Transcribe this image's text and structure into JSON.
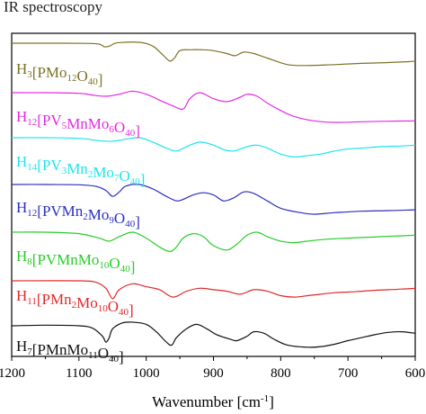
{
  "chart_data": {
    "type": "line",
    "title": "IR spectroscopy",
    "xlabel": "Wavenumber [cm",
    "xlabel_sup": "-1",
    "xlabel_tail": "]",
    "ylabel": "",
    "xlim": [
      1200,
      600
    ],
    "x_reversed": true,
    "xticks": [
      1200,
      1100,
      1000,
      900,
      800,
      700,
      600
    ],
    "grid": false,
    "series": [
      {
        "name_parts": [
          [
            "H",
            "",
            "3"
          ],
          [
            "[PMo",
            "",
            "12"
          ],
          [
            "O",
            "",
            "40"
          ],
          [
            "]",
            "",
            ""
          ]
        ],
        "color": "#7a7325",
        "x": [
          1200,
          1160,
          1090,
          1070,
          1062,
          1055,
          1048,
          1040,
          1010,
          990,
          975,
          965,
          958,
          950,
          935,
          915,
          900,
          880,
          868,
          855,
          840,
          820,
          790,
          760,
          720,
          680,
          640,
          610,
          600
        ],
        "y": [
          0.0,
          0.0,
          0.005,
          0.03,
          0.12,
          0.1,
          0.02,
          -0.02,
          -0.03,
          0.1,
          0.4,
          0.6,
          0.5,
          0.25,
          0.22,
          0.22,
          0.25,
          0.35,
          0.42,
          0.3,
          0.35,
          0.5,
          0.72,
          0.75,
          0.72,
          0.68,
          0.65,
          0.62,
          0.6
        ]
      },
      {
        "name_parts": [
          [
            "H",
            "",
            "12"
          ],
          [
            "[PV",
            "",
            "5"
          ],
          [
            "MnMo",
            "",
            "6"
          ],
          [
            "O",
            "",
            "40"
          ],
          [
            "]",
            "",
            ""
          ]
        ],
        "color": "#e22be1",
        "x": [
          1200,
          1150,
          1100,
          1080,
          1060,
          1040,
          1020,
          1000,
          980,
          960,
          945,
          935,
          920,
          900,
          880,
          860,
          850,
          835,
          820,
          800,
          780,
          750,
          720,
          680,
          640,
          600
        ],
        "y": [
          0.0,
          0.0,
          0.02,
          0.08,
          0.12,
          0.05,
          -0.05,
          0.05,
          0.25,
          0.45,
          0.55,
          0.2,
          0.0,
          0.2,
          0.3,
          0.15,
          0.05,
          0.12,
          0.35,
          0.6,
          0.8,
          0.95,
          1.0,
          0.98,
          0.96,
          0.95
        ]
      },
      {
        "name_parts": [
          [
            "H",
            "",
            "14"
          ],
          [
            "[PV",
            "",
            "3"
          ],
          [
            "Mn",
            "",
            "2"
          ],
          [
            "Mo",
            "",
            "7"
          ],
          [
            "O",
            "",
            "40"
          ],
          [
            "]",
            "",
            ""
          ]
        ],
        "color": "#19e6ee",
        "x": [
          1200,
          1150,
          1100,
          1070,
          1050,
          1030,
          1010,
          990,
          970,
          955,
          940,
          920,
          900,
          885,
          870,
          850,
          835,
          820,
          800,
          780,
          760,
          740,
          720,
          700,
          680,
          650,
          620,
          600
        ],
        "y": [
          0.0,
          0.0,
          0.02,
          0.1,
          0.12,
          0.05,
          0.0,
          0.15,
          0.35,
          0.45,
          0.3,
          0.15,
          0.25,
          0.4,
          0.45,
          0.3,
          0.25,
          0.35,
          0.55,
          0.65,
          0.6,
          0.55,
          0.45,
          0.38,
          0.35,
          0.3,
          0.28,
          0.25
        ]
      },
      {
        "name_parts": [
          [
            "H",
            "",
            "12"
          ],
          [
            "[PVMn",
            "",
            "2"
          ],
          [
            "Mo",
            "",
            "9"
          ],
          [
            "O",
            "",
            "40"
          ],
          [
            "]",
            "",
            ""
          ]
        ],
        "color": "#2a2fbe",
        "x": [
          1200,
          1150,
          1100,
          1075,
          1060,
          1050,
          1040,
          1030,
          1010,
          990,
          970,
          955,
          945,
          930,
          915,
          900,
          885,
          870,
          855,
          840,
          820,
          800,
          770,
          750,
          720,
          680,
          640,
          600
        ],
        "y": [
          0.0,
          0.0,
          0.01,
          0.06,
          0.2,
          0.4,
          0.25,
          0.05,
          0.0,
          0.15,
          0.4,
          0.55,
          0.5,
          0.35,
          0.28,
          0.35,
          0.55,
          0.45,
          0.25,
          0.3,
          0.55,
          0.8,
          0.95,
          1.0,
          0.95,
          0.9,
          0.88,
          0.85
        ]
      },
      {
        "name_parts": [
          [
            "H",
            "",
            "8"
          ],
          [
            "[PVMnMo",
            "",
            "10"
          ],
          [
            "O",
            "",
            "40"
          ],
          [
            "]",
            "",
            ""
          ]
        ],
        "color": "#27cc2a",
        "x": [
          1200,
          1150,
          1100,
          1070,
          1055,
          1040,
          1020,
          1000,
          980,
          965,
          955,
          945,
          930,
          915,
          900,
          880,
          865,
          850,
          835,
          820,
          800,
          780,
          760,
          740,
          720,
          700,
          680,
          650,
          620,
          600
        ],
        "y": [
          0.0,
          0.0,
          0.05,
          0.2,
          0.3,
          0.15,
          0.0,
          0.2,
          0.5,
          0.65,
          0.5,
          0.2,
          0.05,
          0.15,
          0.45,
          0.6,
          0.4,
          0.1,
          0.0,
          0.15,
          0.3,
          0.35,
          0.3,
          0.25,
          0.22,
          0.2,
          0.18,
          0.15,
          0.12,
          0.1
        ]
      },
      {
        "name_parts": [
          [
            "H",
            "",
            "11"
          ],
          [
            "[PMn",
            "",
            "2"
          ],
          [
            "Mo",
            "",
            "10"
          ],
          [
            "O",
            "",
            "40"
          ],
          [
            "]",
            "",
            ""
          ]
        ],
        "color": "#e02a2a",
        "x": [
          1200,
          1100,
          1075,
          1060,
          1050,
          1040,
          1020,
          1000,
          980,
          960,
          940,
          920,
          900,
          880,
          860,
          840,
          820,
          800,
          780,
          760,
          740,
          720,
          700,
          680,
          660,
          640,
          620,
          600
        ],
        "y": [
          0.0,
          0.0,
          0.05,
          0.25,
          0.6,
          0.3,
          0.1,
          0.2,
          0.3,
          0.55,
          0.35,
          0.25,
          0.3,
          0.35,
          0.45,
          0.3,
          0.35,
          0.5,
          0.55,
          0.5,
          0.45,
          0.4,
          0.38,
          0.35,
          0.32,
          0.3,
          0.28,
          0.25
        ]
      },
      {
        "name_parts": [
          [
            "H",
            "",
            "7"
          ],
          [
            "[PMnMo",
            "",
            "11"
          ],
          [
            "O",
            "",
            "40"
          ],
          [
            "]",
            "",
            ""
          ]
        ],
        "color": "#111111",
        "x": [
          1200,
          1150,
          1100,
          1080,
          1065,
          1060,
          1055,
          1050,
          1035,
          1020,
          1000,
          985,
          970,
          962,
          955,
          940,
          925,
          910,
          895,
          875,
          865,
          850,
          840,
          825,
          810,
          790,
          760,
          740,
          720,
          700,
          680,
          660,
          640,
          620,
          600
        ],
        "y": [
          0.0,
          -0.02,
          0.0,
          0.08,
          0.35,
          0.55,
          0.4,
          0.1,
          -0.1,
          -0.12,
          -0.05,
          0.2,
          0.55,
          0.65,
          0.4,
          0.1,
          -0.05,
          0.1,
          0.3,
          0.45,
          0.5,
          0.35,
          0.2,
          0.25,
          0.45,
          0.65,
          0.72,
          0.7,
          0.62,
          0.5,
          0.4,
          0.3,
          0.22,
          0.2,
          0.25
        ]
      }
    ]
  }
}
